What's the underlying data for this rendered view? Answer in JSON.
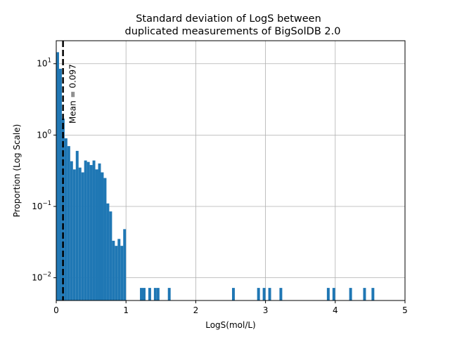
{
  "chart_data": {
    "type": "bar",
    "title_lines": [
      "Standard deviation of LogS between",
      "duplicated measurements of BigSolDB 2.0"
    ],
    "xlabel": "LogS(mol/L)",
    "ylabel": "Proportion (Log Scale)",
    "xlim": [
      0,
      5
    ],
    "ylim": [
      0.0048,
      21
    ],
    "yscale": "log",
    "grid": true,
    "xticks": [
      0,
      1,
      2,
      3,
      4,
      5
    ],
    "xtick_labels": [
      "0",
      "1",
      "2",
      "3",
      "4",
      "5"
    ],
    "yticks": [
      0.01,
      0.1,
      1,
      10
    ],
    "ytick_labels": [
      {
        "base": "10",
        "exp": "−2"
      },
      {
        "base": "10",
        "exp": "−1"
      },
      {
        "base": "10",
        "exp": "0"
      },
      {
        "base": "10",
        "exp": "1"
      }
    ],
    "bin_width": 0.04,
    "bins_start": [
      0,
      0.04,
      0.08,
      0.12,
      0.16,
      0.2,
      0.24,
      0.28,
      0.32,
      0.36,
      0.4,
      0.44,
      0.48,
      0.52,
      0.56,
      0.6,
      0.64,
      0.68,
      0.72,
      0.76,
      0.8,
      0.84,
      0.88,
      0.92,
      0.96,
      1.2,
      1.24,
      1.32,
      1.4,
      1.44,
      1.6,
      2.52,
      2.88,
      2.96,
      3.04,
      3.2,
      3.88,
      3.96,
      4.2,
      4.4,
      4.52
    ],
    "values": [
      14.5,
      8.5,
      1.7,
      0.9,
      0.7,
      0.43,
      0.33,
      0.6,
      0.35,
      0.3,
      0.44,
      0.42,
      0.38,
      0.44,
      0.33,
      0.4,
      0.3,
      0.25,
      0.11,
      0.085,
      0.033,
      0.028,
      0.035,
      0.028,
      0.048,
      0.0072,
      0.0072,
      0.0072,
      0.0072,
      0.0072,
      0.0072,
      0.0072,
      0.0072,
      0.0072,
      0.0072,
      0.0072,
      0.0072,
      0.0072,
      0.0072,
      0.0072,
      0.0072
    ],
    "bar_color": "#1f77b4",
    "mean_line": {
      "value": 0.097,
      "label": "Mean = 0.097",
      "color": "#000000",
      "style": "dashed"
    }
  }
}
